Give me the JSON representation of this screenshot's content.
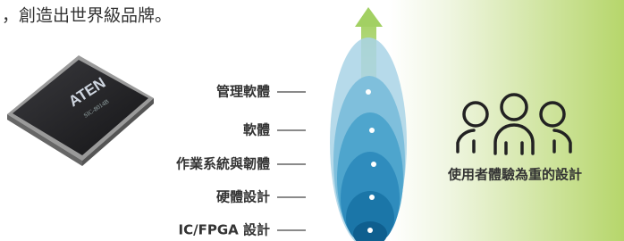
{
  "header": {
    "text": "，創造出世界級品牌。"
  },
  "chip": {
    "brand": "ATEN",
    "model": "SIC-8014B"
  },
  "layers": [
    {
      "label": "管理軟體"
    },
    {
      "label": "軟體"
    },
    {
      "label": "作業系統與韌體"
    },
    {
      "label": "硬體設計"
    },
    {
      "label": "IC/FPGA 設計"
    }
  ],
  "goal": {
    "label": "使用者體驗為重的設計"
  }
}
